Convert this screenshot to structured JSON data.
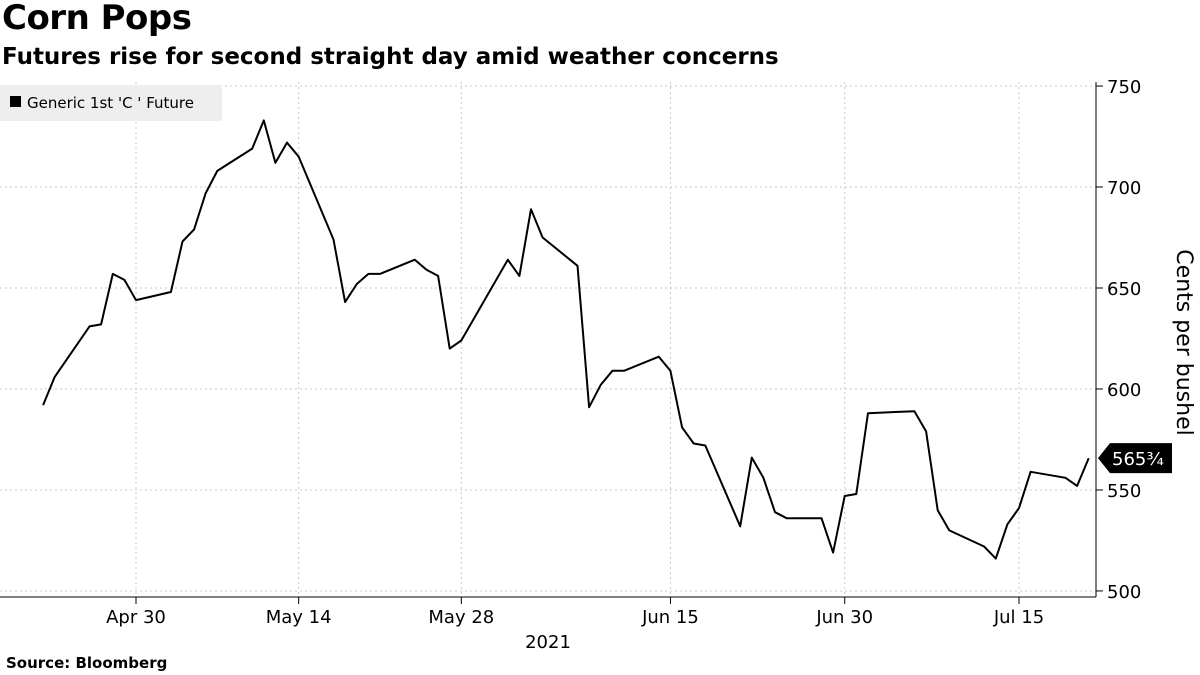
{
  "title": "Corn Pops",
  "subtitle": "Futures rise for second straight day amid weather concerns",
  "source": "Source: Bloomberg",
  "chart_data": {
    "type": "line",
    "x": [
      "2021-04-22",
      "2021-04-23",
      "2021-04-26",
      "2021-04-27",
      "2021-04-28",
      "2021-04-29",
      "2021-04-30",
      "2021-05-03",
      "2021-05-04",
      "2021-05-05",
      "2021-05-06",
      "2021-05-07",
      "2021-05-10",
      "2021-05-11",
      "2021-05-12",
      "2021-05-13",
      "2021-05-14",
      "2021-05-17",
      "2021-05-18",
      "2021-05-19",
      "2021-05-20",
      "2021-05-21",
      "2021-05-24",
      "2021-05-25",
      "2021-05-26",
      "2021-05-27",
      "2021-05-28",
      "2021-06-01",
      "2021-06-02",
      "2021-06-03",
      "2021-06-04",
      "2021-06-07",
      "2021-06-08",
      "2021-06-09",
      "2021-06-10",
      "2021-06-11",
      "2021-06-14",
      "2021-06-15",
      "2021-06-16",
      "2021-06-17",
      "2021-06-18",
      "2021-06-21",
      "2021-06-22",
      "2021-06-23",
      "2021-06-24",
      "2021-06-25",
      "2021-06-28",
      "2021-06-29",
      "2021-06-30",
      "2021-07-01",
      "2021-07-02",
      "2021-07-06",
      "2021-07-07",
      "2021-07-08",
      "2021-07-09",
      "2021-07-12",
      "2021-07-13",
      "2021-07-14",
      "2021-07-15",
      "2021-07-16",
      "2021-07-19",
      "2021-07-20",
      "2021-07-21"
    ],
    "series": [
      {
        "name": "Generic 1st 'C ' Future",
        "color": "#000000",
        "values": [
          592,
          606,
          631,
          632,
          657,
          654,
          644,
          648,
          673,
          679,
          697,
          708,
          719,
          733,
          712,
          722,
          715,
          674,
          643,
          652,
          657,
          657,
          664,
          659,
          656,
          620,
          624,
          664,
          656,
          689,
          675,
          661,
          591,
          602,
          609,
          609,
          616,
          609,
          581,
          573,
          572,
          532,
          566,
          556,
          539,
          536,
          536,
          519,
          547,
          548,
          588,
          589,
          579,
          540,
          530,
          522,
          516,
          533,
          541,
          559,
          556,
          552,
          565.75
        ]
      }
    ],
    "xtick_labels": [
      "Apr 30",
      "May 14",
      "May 28",
      "Jun 15",
      "Jun 30",
      "Jul 15"
    ],
    "xtick_dates": [
      "2021-04-30",
      "2021-05-14",
      "2021-05-28",
      "2021-06-15",
      "2021-06-30",
      "2021-07-15"
    ],
    "year_label": "2021",
    "ylabel": "Cents per bushel",
    "yticks": [
      500,
      550,
      600,
      650,
      700,
      750
    ],
    "ylim": [
      497,
      752
    ],
    "legend_position": "top-left",
    "last_value_label": "565¾",
    "grid": true
  }
}
